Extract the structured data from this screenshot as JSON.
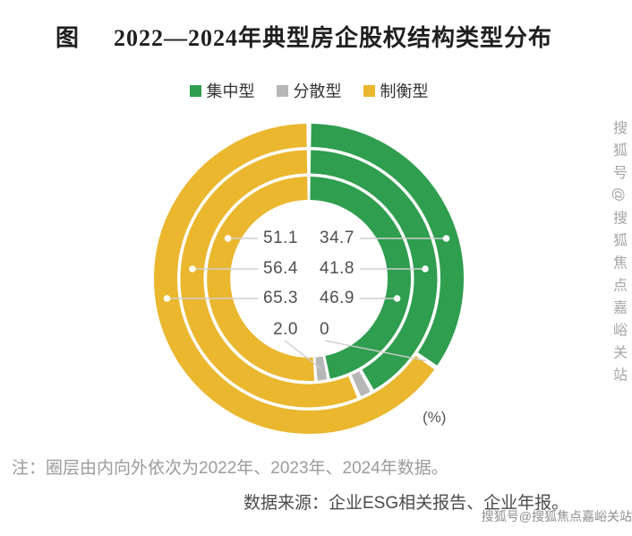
{
  "title": {
    "prefix": "图",
    "text": "2022—2024年典型房企股权结构类型分布"
  },
  "legend": [
    {
      "label": "集中型",
      "color": "#2F9E4F"
    },
    {
      "label": "分散型",
      "color": "#B7B7B7"
    },
    {
      "label": "制衡型",
      "color": "#EAB72F"
    }
  ],
  "chart_data": {
    "type": "donut",
    "title": "2022—2024年典型房企股权结构类型分布",
    "unit": "(%)",
    "categories": [
      "集中型",
      "分散型",
      "制衡型"
    ],
    "colors": [
      "#2F9E4F",
      "#B7B7B7",
      "#EAB72F"
    ],
    "ring_order": "inner-to-outer",
    "rings": [
      {
        "year": "2022年",
        "values": [
          46.9,
          2.0,
          51.1
        ]
      },
      {
        "year": "2023年",
        "values": [
          41.8,
          1.8,
          56.4
        ]
      },
      {
        "year": "2024年",
        "values": [
          34.7,
          0,
          65.3
        ]
      }
    ],
    "center_labels": {
      "left": [
        "51.1",
        "56.4",
        "65.3",
        "2.0"
      ],
      "right": [
        "34.7",
        "41.8",
        "46.9",
        "0"
      ]
    }
  },
  "note": "注：圈层由内向外依次为2022年、2023年、2024年数据。",
  "source": "数据来源：企业ESG相关报告、企业年报。",
  "watermark": "搜狐号@搜狐焦点嘉峪关站"
}
